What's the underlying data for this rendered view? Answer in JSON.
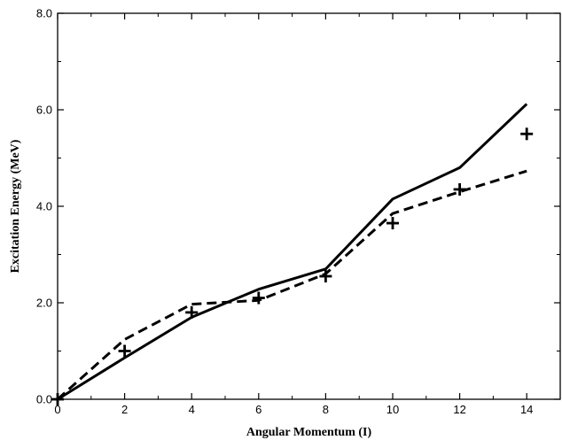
{
  "chart_data": {
    "type": "line",
    "title": "",
    "xlabel": "Angular Momentum (I)",
    "ylabel": "Excitation Energy (MeV)",
    "xlim": [
      0,
      15
    ],
    "ylim": [
      0,
      8
    ],
    "x_ticks": [
      0,
      2,
      4,
      6,
      8,
      10,
      12,
      14
    ],
    "x_tick_labels": [
      "0",
      "2",
      "4",
      "6",
      "8",
      "10",
      "12",
      "14"
    ],
    "y_ticks": [
      0,
      2,
      4,
      6,
      8
    ],
    "y_tick_labels": [
      "0.0",
      "2.0",
      "4.0",
      "6.0",
      "8.0"
    ],
    "grid": false,
    "legend": "none",
    "series": [
      {
        "style": "solid",
        "color": "#000000",
        "x": [
          0,
          2,
          4,
          6,
          8,
          10,
          12,
          14
        ],
        "y": [
          0,
          0.86,
          1.7,
          2.28,
          2.7,
          4.15,
          4.8,
          6.12
        ]
      },
      {
        "style": "dashed",
        "color": "#000000",
        "x": [
          0,
          2,
          4,
          6,
          8,
          10,
          12,
          14
        ],
        "y": [
          0,
          1.24,
          1.97,
          2.05,
          2.6,
          3.85,
          4.3,
          4.73
        ]
      },
      {
        "style": "plus-markers",
        "color": "#000000",
        "x": [
          0,
          2,
          4,
          6,
          8,
          10,
          12,
          14
        ],
        "y": [
          0,
          1.0,
          1.8,
          2.1,
          2.55,
          3.65,
          4.35,
          5.5
        ]
      }
    ]
  }
}
